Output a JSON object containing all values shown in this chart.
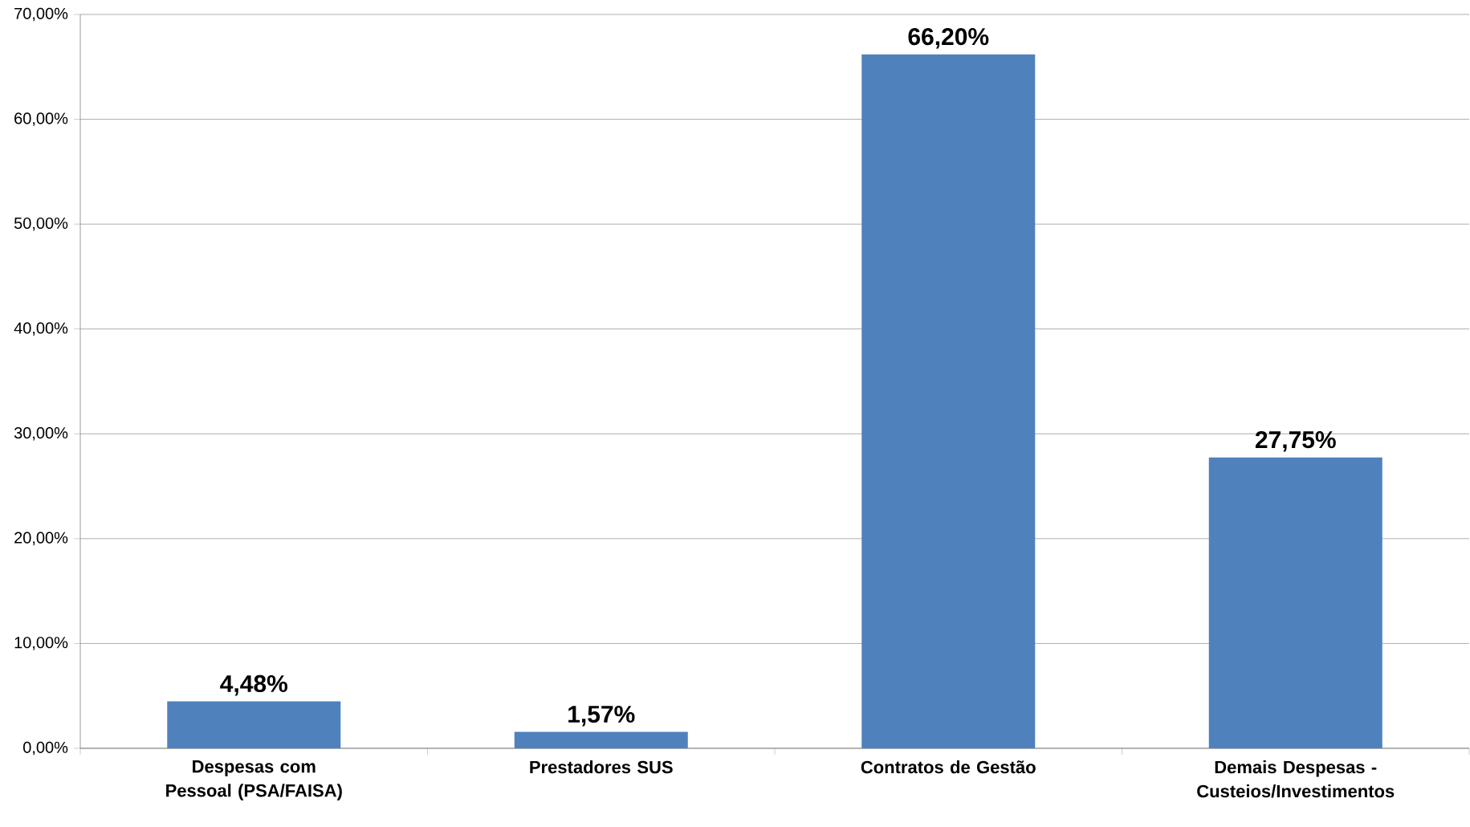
{
  "chart_data": {
    "type": "bar",
    "categories": [
      "Despesas com Pessoal (PSA/FAISA)",
      "Prestadores SUS",
      "Contratos de Gestão",
      "Demais Despesas - Custeios/Investimentos"
    ],
    "values": [
      4.48,
      1.57,
      66.2,
      27.75
    ],
    "value_labels": [
      "4,48%",
      "1,57%",
      "66,20%",
      "27,75%"
    ],
    "color": "#4f81bd",
    "ylim": [
      0,
      70
    ],
    "yticks": [
      {
        "value": 0,
        "label": "0,00%"
      },
      {
        "value": 10,
        "label": "10,00%"
      },
      {
        "value": 20,
        "label": "20,00%"
      },
      {
        "value": 30,
        "label": "30,00%"
      },
      {
        "value": 40,
        "label": "40,00%"
      },
      {
        "value": 50,
        "label": "50,00%"
      },
      {
        "value": 60,
        "label": "60,00%"
      },
      {
        "value": 70,
        "label": "70,00%"
      }
    ],
    "grid": "y"
  }
}
